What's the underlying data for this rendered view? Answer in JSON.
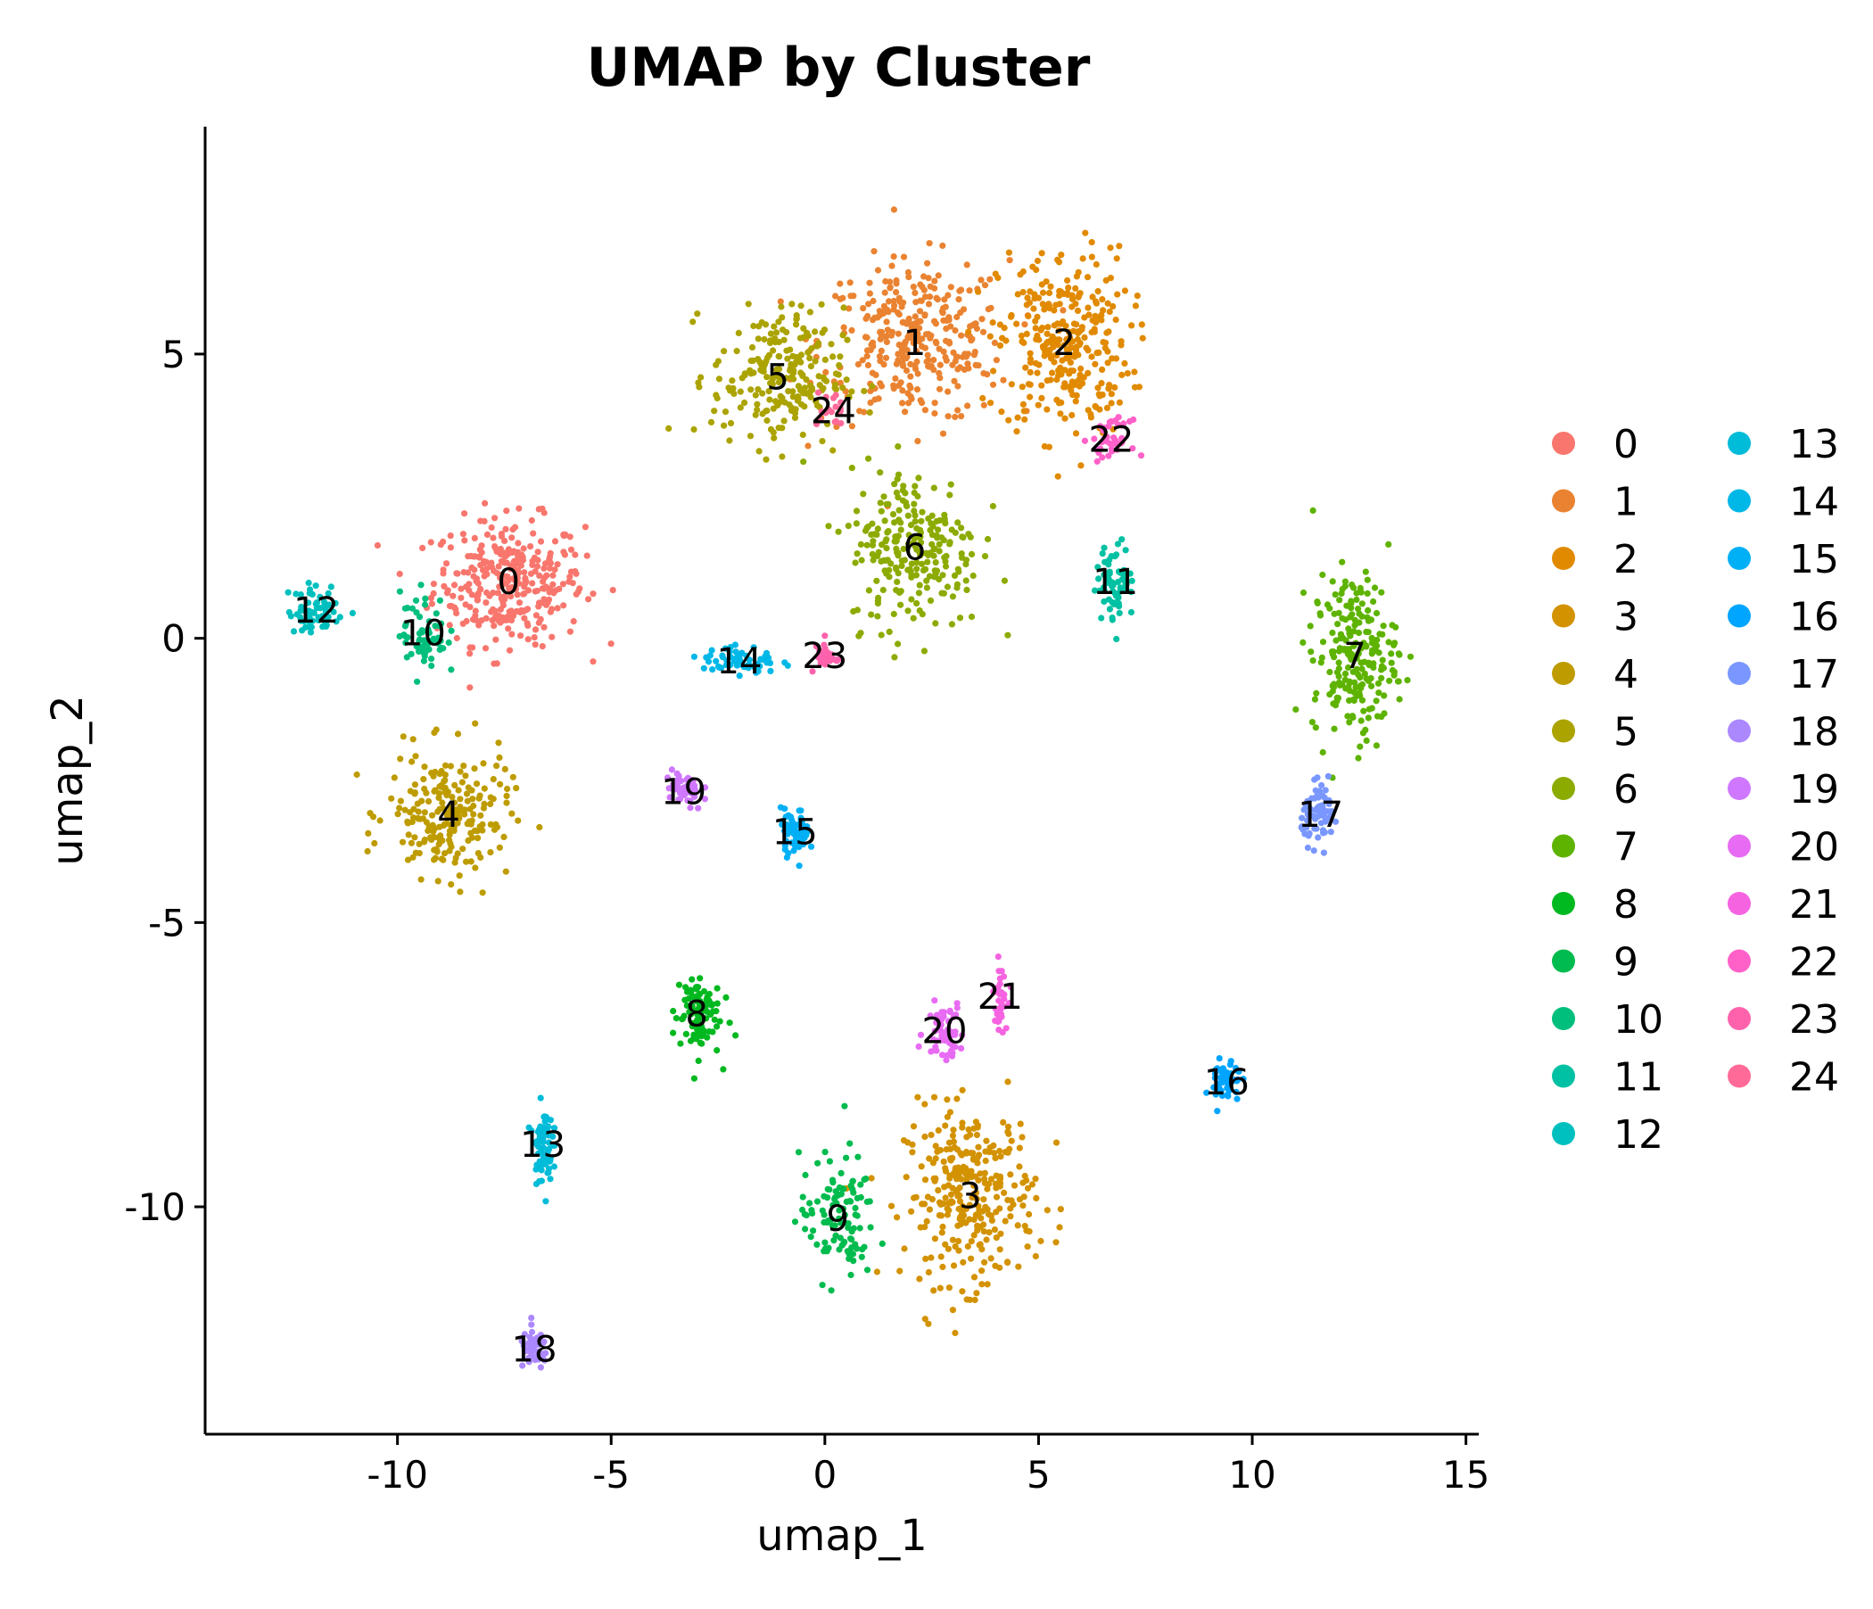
{
  "chart_data": {
    "type": "scatter",
    "title": "UMAP by Cluster",
    "xlabel": "umap_1",
    "ylabel": "umap_2",
    "xlim": [
      -14.5,
      15.3
    ],
    "ylim": [
      -14,
      9
    ],
    "xticks": [
      {
        "value": -10,
        "label": "-10"
      },
      {
        "value": -5,
        "label": "-5"
      },
      {
        "value": 0,
        "label": "0"
      },
      {
        "value": 5,
        "label": "5"
      },
      {
        "value": 10,
        "label": "10"
      },
      {
        "value": 15,
        "label": "15"
      }
    ],
    "yticks": [
      {
        "value": 5,
        "label": "5"
      },
      {
        "value": 0,
        "label": "0"
      },
      {
        "value": -5,
        "label": "-5"
      },
      {
        "value": -10,
        "label": "-10"
      }
    ],
    "grid": false,
    "legend_position": "right",
    "legend_columns": 2,
    "clusters": [
      {
        "name": "0",
        "color": "#F8766D",
        "center": [
          -7.4,
          1.0
        ],
        "spread": [
          1.6,
          1.0
        ],
        "n": 320
      },
      {
        "name": "1",
        "color": "#EA8331",
        "center": [
          2.1,
          5.2
        ],
        "spread": [
          2.0,
          1.3
        ],
        "n": 320
      },
      {
        "name": "2",
        "color": "#E18A00",
        "center": [
          5.6,
          5.2
        ],
        "spread": [
          1.4,
          1.5
        ],
        "n": 300
      },
      {
        "name": "3",
        "color": "#D39200",
        "center": [
          3.4,
          -9.8
        ],
        "spread": [
          1.4,
          1.4
        ],
        "n": 300
      },
      {
        "name": "4",
        "color": "#BE9C00",
        "center": [
          -8.8,
          -3.1
        ],
        "spread": [
          1.3,
          1.0
        ],
        "n": 220
      },
      {
        "name": "5",
        "color": "#ABA300",
        "center": [
          -1.1,
          4.6
        ],
        "spread": [
          1.4,
          1.1
        ],
        "n": 220
      },
      {
        "name": "6",
        "color": "#8CAB00",
        "center": [
          2.1,
          1.6
        ],
        "spread": [
          1.4,
          1.3
        ],
        "n": 240
      },
      {
        "name": "7",
        "color": "#5EB300",
        "center": [
          12.4,
          -0.3
        ],
        "spread": [
          0.9,
          1.3
        ],
        "n": 220
      },
      {
        "name": "8",
        "color": "#00B81F",
        "center": [
          -3.0,
          -6.6
        ],
        "spread": [
          0.5,
          0.7
        ],
        "n": 90
      },
      {
        "name": "9",
        "color": "#00BB4E",
        "center": [
          0.3,
          -10.2
        ],
        "spread": [
          0.8,
          1.0
        ],
        "n": 110
      },
      {
        "name": "10",
        "color": "#00BF7D",
        "center": [
          -9.4,
          0.1
        ],
        "spread": [
          0.5,
          0.7
        ],
        "n": 60
      },
      {
        "name": "11",
        "color": "#00C1A3",
        "center": [
          6.8,
          1.0
        ],
        "spread": [
          0.4,
          0.6
        ],
        "n": 70
      },
      {
        "name": "12",
        "color": "#00C0BF",
        "center": [
          -11.9,
          0.5
        ],
        "spread": [
          0.6,
          0.4
        ],
        "n": 60
      },
      {
        "name": "13",
        "color": "#00BCD8",
        "center": [
          -6.6,
          -8.9
        ],
        "spread": [
          0.2,
          0.6
        ],
        "n": 70
      },
      {
        "name": "14",
        "color": "#00B8E7",
        "center": [
          -2.0,
          -0.4
        ],
        "spread": [
          0.8,
          0.25
        ],
        "n": 60
      },
      {
        "name": "15",
        "color": "#00B0F6",
        "center": [
          -0.7,
          -3.4
        ],
        "spread": [
          0.3,
          0.35
        ],
        "n": 60
      },
      {
        "name": "16",
        "color": "#00A5FF",
        "center": [
          9.4,
          -7.8
        ],
        "spread": [
          0.3,
          0.4
        ],
        "n": 50
      },
      {
        "name": "17",
        "color": "#7997FF",
        "center": [
          11.6,
          -3.1
        ],
        "spread": [
          0.4,
          0.45
        ],
        "n": 70
      },
      {
        "name": "18",
        "color": "#AC88FF",
        "center": [
          -6.8,
          -12.5
        ],
        "spread": [
          0.3,
          0.3
        ],
        "n": 50
      },
      {
        "name": "19",
        "color": "#CF78FF",
        "center": [
          -3.3,
          -2.7
        ],
        "spread": [
          0.4,
          0.35
        ],
        "n": 50
      },
      {
        "name": "20",
        "color": "#E76BF3",
        "center": [
          2.8,
          -6.9
        ],
        "spread": [
          0.4,
          0.45
        ],
        "n": 60
      },
      {
        "name": "21",
        "color": "#F663E1",
        "center": [
          4.1,
          -6.3
        ],
        "spread": [
          0.15,
          0.5
        ],
        "n": 40
      },
      {
        "name": "22",
        "color": "#FF61C9",
        "center": [
          6.7,
          3.5
        ],
        "spread": [
          0.4,
          0.3
        ],
        "n": 40
      },
      {
        "name": "23",
        "color": "#FF62AD",
        "center": [
          0.0,
          -0.3
        ],
        "spread": [
          0.25,
          0.3
        ],
        "n": 25
      },
      {
        "name": "24",
        "color": "#FF6A98",
        "center": [
          0.2,
          4.0
        ],
        "spread": [
          0.4,
          0.3
        ],
        "n": 20
      }
    ]
  }
}
